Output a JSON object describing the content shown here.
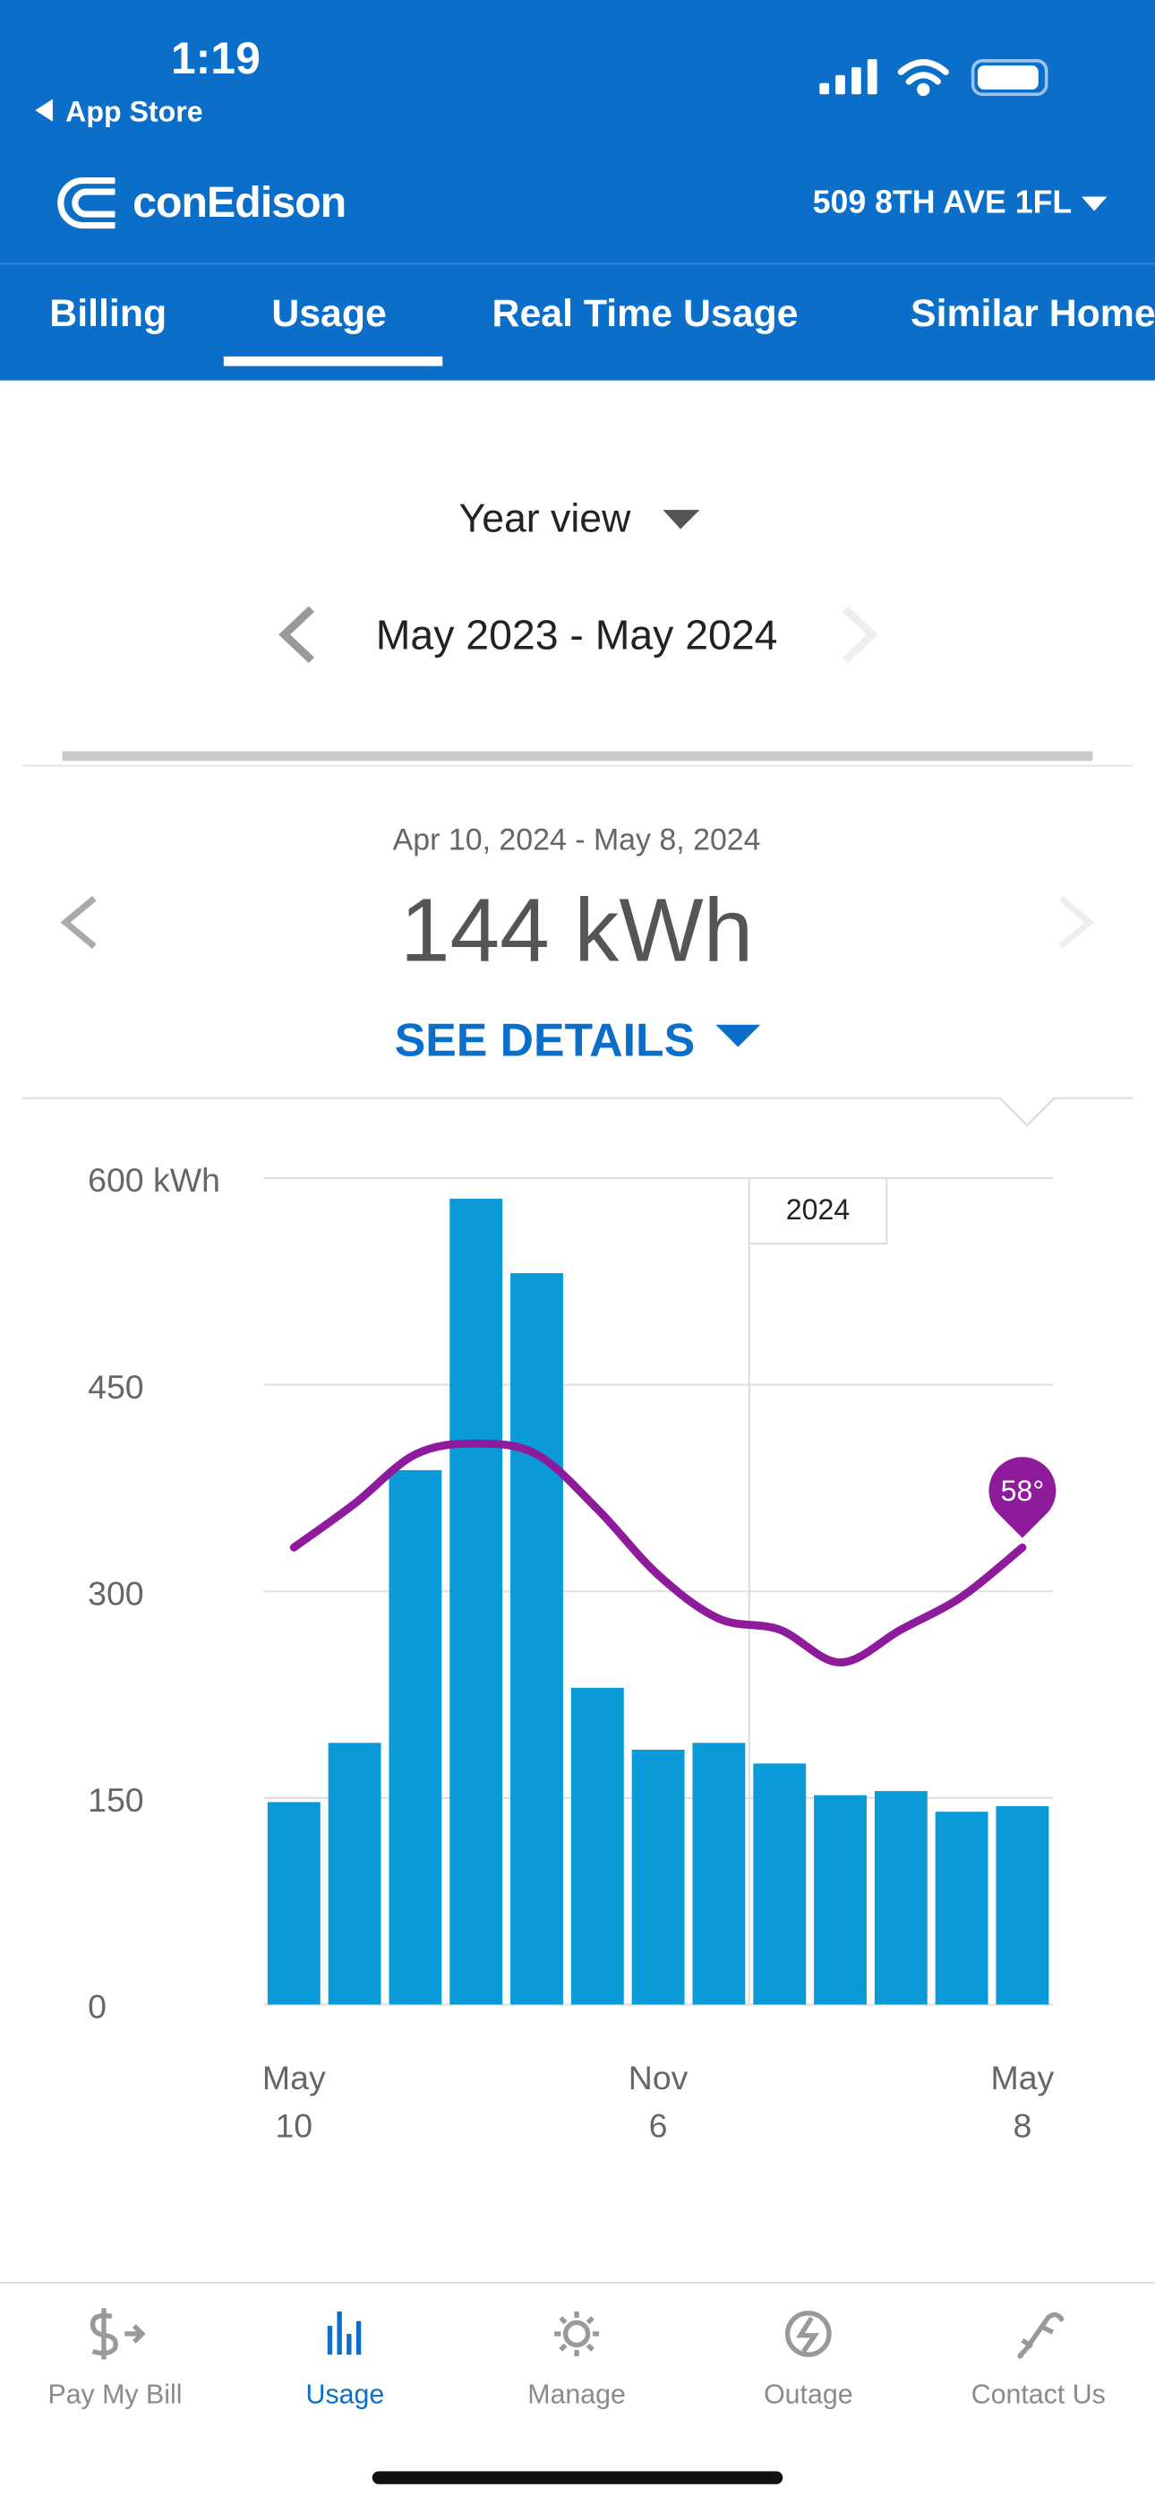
{
  "status_bar": {
    "time": "1:19",
    "back_label": "App Store"
  },
  "header": {
    "brand": "conEdison",
    "address": "509 8TH AVE 1FL"
  },
  "tabs": [
    "Billing",
    "Usage",
    "Real Time Usage",
    "Similar Home"
  ],
  "view": {
    "mode": "Year view",
    "range": "May 2023 - May 2024"
  },
  "summary": {
    "period": "Apr 10, 2024 - May 8, 2024",
    "usage": "144 kWh",
    "details_link": "SEE DETAILS"
  },
  "chart_data": {
    "type": "bar",
    "categories": [
      "May\n10",
      null,
      null,
      null,
      null,
      null,
      "Nov\n6",
      null,
      null,
      null,
      null,
      null,
      "May\n8"
    ],
    "values": [
      147,
      190,
      388,
      585,
      531,
      230,
      185,
      190,
      175,
      152,
      155,
      140,
      144
    ],
    "color": "#0a9ad8",
    "temperature": {
      "values": [
        58,
        66,
        75,
        77,
        75,
        65,
        53,
        45,
        43,
        37,
        43,
        49,
        58
      ],
      "color": "#8e1b9b",
      "end_label": "58°"
    },
    "annotation": "2024",
    "ylim": [
      0,
      600
    ],
    "yticks": [
      0,
      150,
      300,
      450,
      {
        "value": 600,
        "label": "600 kWh"
      }
    ],
    "grid": true
  },
  "bottom_nav": [
    "Pay My Bill",
    "Usage",
    "Manage",
    "Outage",
    "Contact Us"
  ]
}
